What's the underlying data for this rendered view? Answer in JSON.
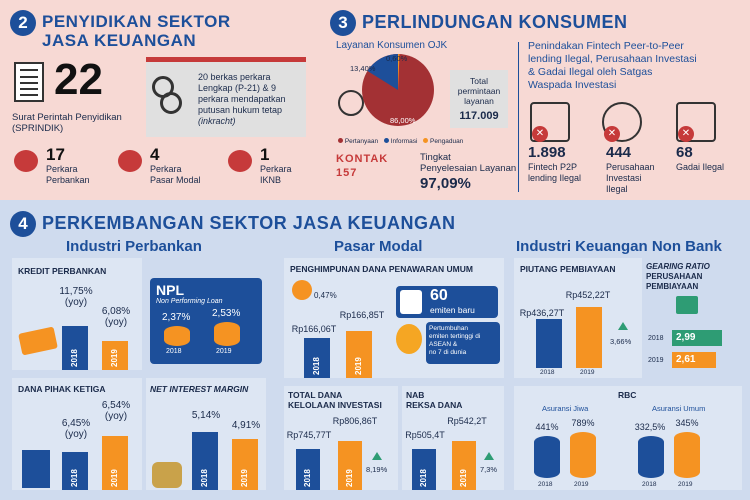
{
  "sec2": {
    "num": "2",
    "title_line1": "PENYIDIKAN SEKTOR",
    "title_line2": "JASA KEUANGAN",
    "sprindik_count": "22",
    "sprindik_label_line1": "Surat Perintah Penyidikan",
    "sprindik_label_line2": "(SPRINDIK)",
    "case_text_line1": "20 berkas perkara",
    "case_text_line2": "Lengkap (P-21) & 9",
    "case_text_line3": "perkara mendapatkan",
    "case_text_line4": "putusan hukum tetap",
    "case_text_line5": "(inkracht)",
    "stats": [
      {
        "value": "17",
        "label_line1": "Perkara",
        "label_line2": "Perbankan",
        "icon": "bank-icon"
      },
      {
        "value": "4",
        "label_line1": "Perkara",
        "label_line2": "Pasar Modal",
        "icon": "chart-icon"
      },
      {
        "value": "1",
        "label_line1": "Perkara",
        "label_line2": "IKNB",
        "icon": "umbrella-icon"
      }
    ]
  },
  "sec3": {
    "num": "3",
    "title": "PERLINDUNGAN KONSUMEN",
    "layanan_title": "Layanan Konsumen OJK",
    "pie_labels": {
      "informasi": "13,40%",
      "pengaduan": "0,60%",
      "pertanyaan": "86,00%"
    },
    "pie_legend": [
      "Pertanyaan",
      "Informasi",
      "Pengaduan"
    ],
    "total_label_line1": "Total",
    "total_label_line2": "permintaan",
    "total_label_line3": "layanan",
    "total_value": "117.009",
    "kontak_logo": "KONTAK 157",
    "kontak_text_line1": "Tingkat",
    "kontak_text_line2": "Penyelesaian Layanan",
    "kontak_value": "97,09%",
    "penindakan_line1": "Penindakan Fintech Peer-to-Peer",
    "penindakan_line2": "lending Ilegal, Perusahaan Investasi",
    "penindakan_line3": "& Gadai Ilegal oleh Satgas",
    "penindakan_line4": "Waspada Investasi",
    "illegal": [
      {
        "value": "1.898",
        "label_line1": "Fintech P2P",
        "label_line2": "lending Ilegal",
        "label_line3": ""
      },
      {
        "value": "444",
        "label_line1": "Perusahaan",
        "label_line2": "Investasi",
        "label_line3": "Ilegal"
      },
      {
        "value": "68",
        "label_line1": "Gadai Ilegal",
        "label_line2": "",
        "label_line3": ""
      }
    ]
  },
  "sec4": {
    "num": "4",
    "title": "PERKEMBANGAN SEKTOR JASA KEUANGAN",
    "col1_title": "Industri Perbankan",
    "col2_title": "Pasar Modal",
    "col3_title": "Industri Keuangan Non Bank",
    "kredit": {
      "title": "KREDIT PERBANKAN",
      "v2018": "11,75%",
      "v2018b": "(yoy)",
      "v2019": "6,08%",
      "v2019b": "(yoy)",
      "y1": "2018",
      "y2": "2019",
      "h1": 0.68,
      "h2": 0.45
    },
    "npl": {
      "title": "NPL",
      "subtitle": "Non Performing Loan",
      "v2018": "2,37%",
      "v2019": "2,53%",
      "y1": "2018",
      "y2": "2019"
    },
    "dpk": {
      "title": "DANA PIHAK KETIGA",
      "v2018": "6,45%",
      "v2018b": "(yoy)",
      "v2019": "6,54%",
      "v2019b": "(yoy)",
      "y1": "2018",
      "y2": "2019",
      "h1": 0.6,
      "h2": 0.85
    },
    "nim": {
      "title": "NET INTEREST MARGIN",
      "v2018": "5,14%",
      "v2019": "4,91%",
      "y1": "2018",
      "y2": "2019",
      "h1": 0.9,
      "h2": 0.8
    },
    "penghimpunan": {
      "title": "PENGHIMPUNAN DANA PENAWARAN UMUM",
      "pct": "0,47%",
      "v2018": "Rp166,06T",
      "v2019": "Rp166,85T",
      "y1": "2018",
      "y2": "2019",
      "h1": 0.55,
      "h2": 0.65,
      "emiten_value": "60",
      "emiten_label": "emiten baru",
      "growth_line1": "Pertumbuhan",
      "growth_line2": "emiten tertinggi di",
      "growth_line3": "ASEAN &",
      "growth_line4": "no 7 di dunia"
    },
    "tdki": {
      "title_line1": "TOTAL DANA",
      "title_line2": "KELOLAAN INVESTASI",
      "v2018": "Rp745,77T",
      "v2019": "Rp806,86T",
      "pct": "8,19%",
      "y1": "2018",
      "y2": "2019",
      "h1": 0.7,
      "h2": 0.85
    },
    "nab": {
      "title_line1": "NAB",
      "title_line2": "REKSA DANA",
      "v2018": "Rp505,4T",
      "v2019": "Rp542,2T",
      "pct": "7,3%",
      "y1": "2018",
      "y2": "2019",
      "h1": 0.7,
      "h2": 0.85
    },
    "piutang": {
      "title": "PIUTANG PEMBIAYAAN",
      "v2018": "Rp436,27T",
      "v2019": "Rp452,22T",
      "pct": "3,66%",
      "y1": "2018",
      "y2": "2019",
      "h1": 0.72,
      "h2": 0.9
    },
    "gearing": {
      "title_line1": "GEARING RATIO",
      "title_line2": "PERUSAHAAN",
      "title_line3": "PEMBIAYAAN",
      "y1": "2018",
      "v1": "2,99",
      "y2": "2019",
      "v2": "2,61"
    },
    "rbc": {
      "title": "RBC",
      "jiwa_label": "Asuransi Jiwa",
      "umum_label": "Asuransi Umum",
      "jiwa_2018": "441%",
      "jiwa_2019": "789%",
      "umum_2018": "332,5%",
      "umum_2019": "345%",
      "y1": "2018",
      "y2": "2019"
    }
  },
  "colors": {
    "blue": "#1d4f9a",
    "orange": "#f59322",
    "green": "#2e9c74",
    "red": "#c63a3a",
    "pink_bg": "#f7d9d4",
    "blue_bg": "#cfdbee"
  }
}
